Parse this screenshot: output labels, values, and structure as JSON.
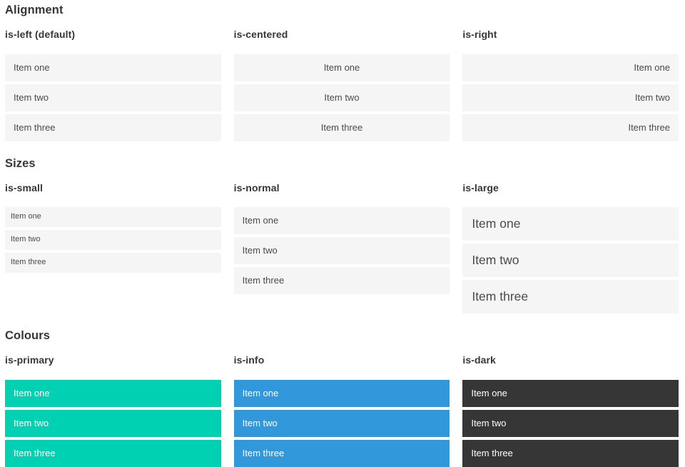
{
  "colors": {
    "primary": "#00d1b2",
    "info": "#3298dc",
    "dark": "#363636",
    "item_background": "#f5f5f5",
    "item_text": "#4a4a4a",
    "heading_text": "#363636",
    "text_on_color": "#ffffff"
  },
  "sections": [
    {
      "title": "Alignment",
      "groups": [
        {
          "label": "is-left (default)",
          "items": [
            "Item one",
            "Item two",
            "Item three"
          ]
        },
        {
          "label": "is-centered",
          "items": [
            "Item one",
            "Item two",
            "Item three"
          ]
        },
        {
          "label": "is-right",
          "items": [
            "Item one",
            "Item two",
            "Item three"
          ]
        }
      ]
    },
    {
      "title": "Sizes",
      "groups": [
        {
          "label": "is-small",
          "items": [
            "Item one",
            "Item two",
            "Item three"
          ]
        },
        {
          "label": "is-normal",
          "items": [
            "Item one",
            "Item two",
            "Item three"
          ]
        },
        {
          "label": "is-large",
          "items": [
            "Item one",
            "Item two",
            "Item three"
          ]
        }
      ]
    },
    {
      "title": "Colours",
      "groups": [
        {
          "label": "is-primary",
          "items": [
            "Item one",
            "Item two",
            "Item three"
          ]
        },
        {
          "label": "is-info",
          "items": [
            "Item one",
            "Item two",
            "Item three"
          ]
        },
        {
          "label": "is-dark",
          "items": [
            "Item one",
            "Item two",
            "Item three"
          ]
        }
      ]
    }
  ]
}
